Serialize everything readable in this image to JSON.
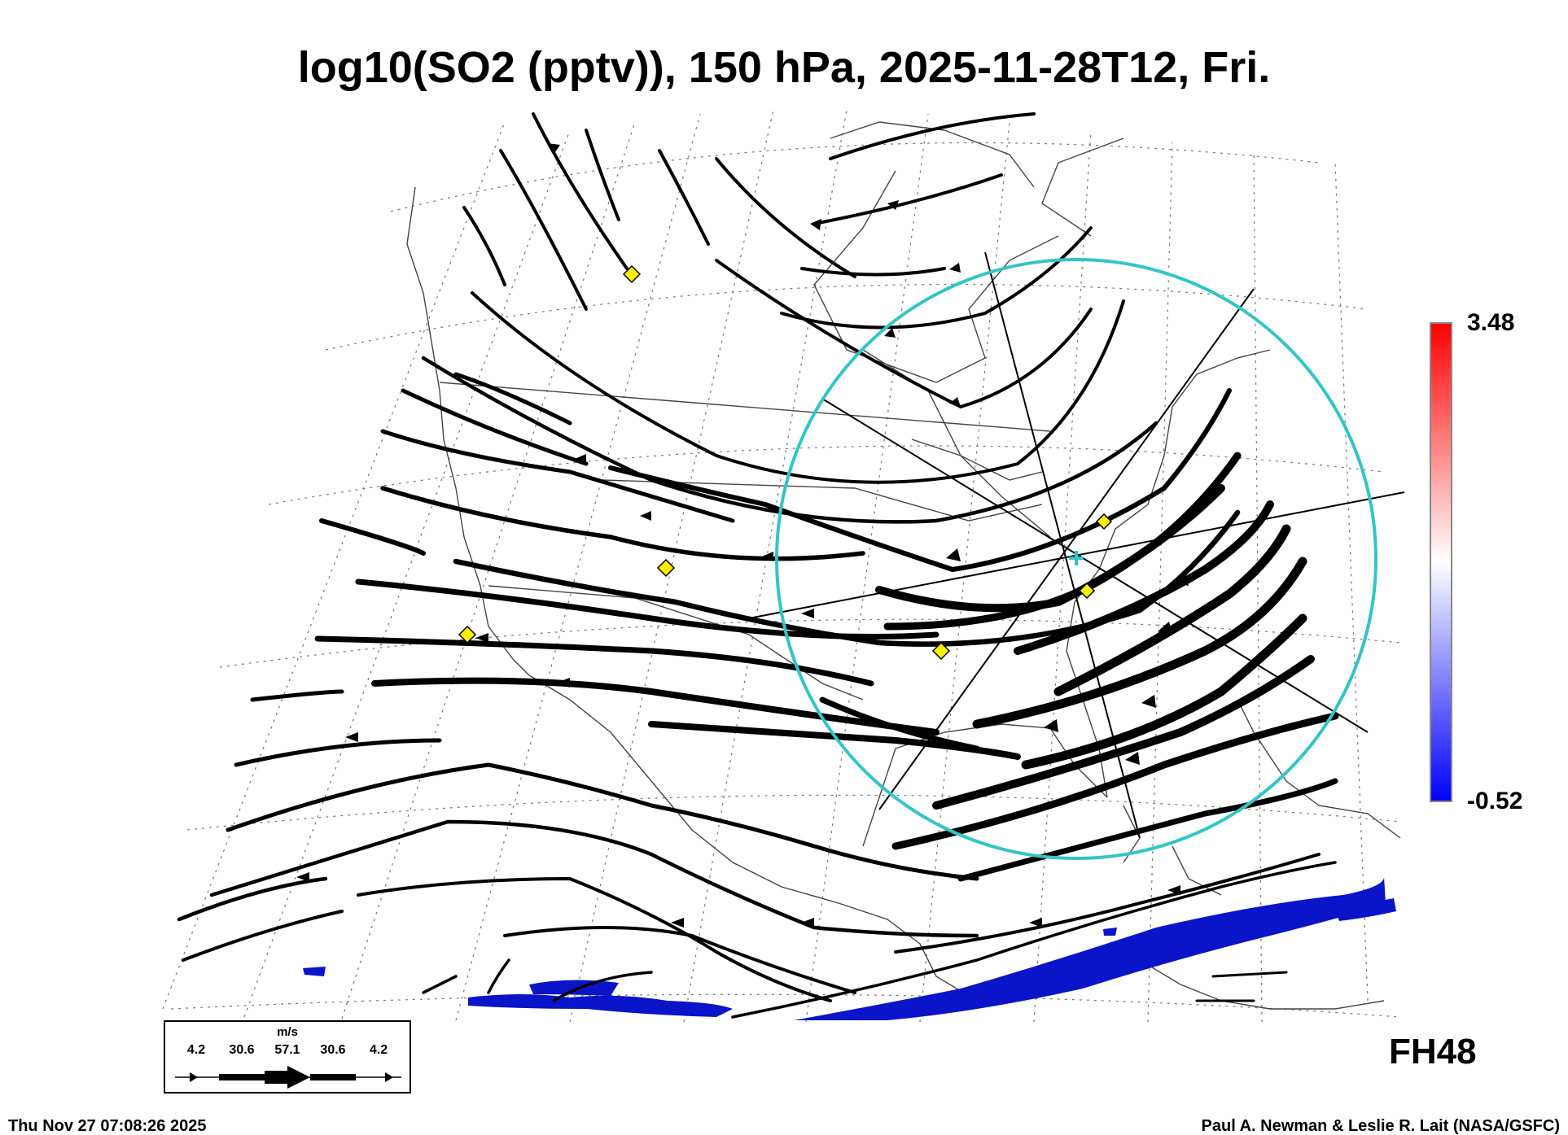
{
  "title": "log10(SO2 (pptv)), 150 hPa, 2025-11-28T12, Fri.",
  "colorbar": {
    "max_label": "3.48",
    "min_label": "-0.52",
    "colors": {
      "top": "#ff0000",
      "middle": "#ffffff",
      "bottom": "#0000ff"
    }
  },
  "forecast_hour": "FH48",
  "wind_legend": {
    "unit": "m/s",
    "values": [
      "4.2",
      "30.6",
      "57.1",
      "30.6",
      "4.2"
    ]
  },
  "footer": {
    "timestamp": "Thu Nov 27 07:08:26 2025",
    "credit": "Paul A. Newman & Leslie R. Lait (NASA/GSFC)"
  },
  "overlay_colors": {
    "so2_fill": "#0a14c8",
    "circle": "#33c4c8",
    "station_marker": "#ffee00"
  }
}
